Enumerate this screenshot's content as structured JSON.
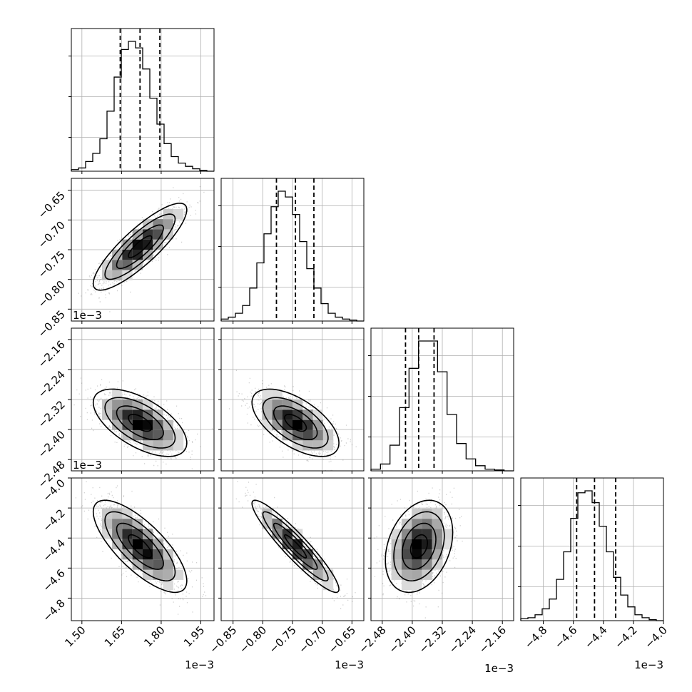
{
  "chart_data": {
    "type": "corner",
    "n_params": 4,
    "grid": true,
    "colors": {
      "line": "#000000",
      "grid": "#b0b0b0",
      "points": "#777777"
    },
    "params": [
      {
        "range": [
          1.46,
          2.0
        ],
        "ticks": [
          1.5,
          1.65,
          1.8,
          1.95
        ],
        "tick_labels": [
          "1.50",
          "1.65",
          "1.80",
          "1.95"
        ],
        "exponent": "1e−3",
        "quantiles": [
          1.645,
          1.72,
          1.795
        ],
        "mean": 1.72,
        "sd": 0.075
      },
      {
        "range": [
          -0.87,
          -0.63
        ],
        "ticks": [
          -0.85,
          -0.8,
          -0.75,
          -0.7,
          -0.65
        ],
        "tick_labels": [
          "−0.85",
          "−0.80",
          "−0.75",
          "−0.70",
          "−0.65"
        ],
        "exponent": "1e−3",
        "quantiles": [
          -0.777,
          -0.745,
          -0.714
        ],
        "mean": -0.745,
        "sd": 0.031
      },
      {
        "range": [
          -2.51,
          -2.13
        ],
        "ticks": [
          -2.48,
          -2.4,
          -2.32,
          -2.24,
          -2.16
        ],
        "tick_labels": [
          "−2.48",
          "−2.40",
          "−2.32",
          "−2.24",
          "−2.16"
        ],
        "exponent": "1e−3",
        "quantiles": [
          -2.418,
          -2.383,
          -2.342
        ],
        "mean": -2.382,
        "sd": 0.038
      },
      {
        "range": [
          -4.95,
          -4.0
        ],
        "ticks": [
          -4.8,
          -4.6,
          -4.4,
          -4.2,
          -4.0
        ],
        "tick_labels": [
          "−4.8",
          "−4.6",
          "−4.4",
          "−4.2",
          "−4.0"
        ],
        "exponent": "1e−3",
        "quantiles": [
          -4.578,
          -4.459,
          -4.318
        ],
        "mean": -4.455,
        "sd": 0.13
      }
    ],
    "correlations": [
      [
        1,
        0.85,
        -0.6,
        -0.75
      ],
      [
        0.85,
        1,
        -0.6,
        -0.93
      ],
      [
        -0.6,
        -0.6,
        1,
        0.3
      ],
      [
        -0.75,
        -0.93,
        0.3,
        1
      ]
    ],
    "histograms": [
      [
        0.01,
        0.02,
        0.06,
        0.11,
        0.2,
        0.37,
        0.58,
        0.75,
        0.8,
        0.76,
        0.63,
        0.45,
        0.29,
        0.17,
        0.09,
        0.05,
        0.03,
        0.015,
        0.005,
        0.0
      ],
      [
        0.01,
        0.02,
        0.04,
        0.08,
        0.17,
        0.3,
        0.45,
        0.59,
        0.67,
        0.64,
        0.55,
        0.41,
        0.27,
        0.17,
        0.09,
        0.04,
        0.02,
        0.01,
        0.005,
        0.0
      ],
      [
        0.01,
        0.04,
        0.15,
        0.37,
        0.6,
        0.76,
        0.76,
        0.58,
        0.33,
        0.16,
        0.07,
        0.03,
        0.01,
        0.005,
        0.0
      ],
      [
        0.01,
        0.015,
        0.03,
        0.06,
        0.11,
        0.21,
        0.35,
        0.52,
        0.65,
        0.66,
        0.6,
        0.48,
        0.35,
        0.22,
        0.13,
        0.07,
        0.03,
        0.015,
        0.005,
        0.0
      ]
    ],
    "contour_levels_sigma": [
      0.5,
      1.0,
      1.5,
      2.0
    ]
  }
}
